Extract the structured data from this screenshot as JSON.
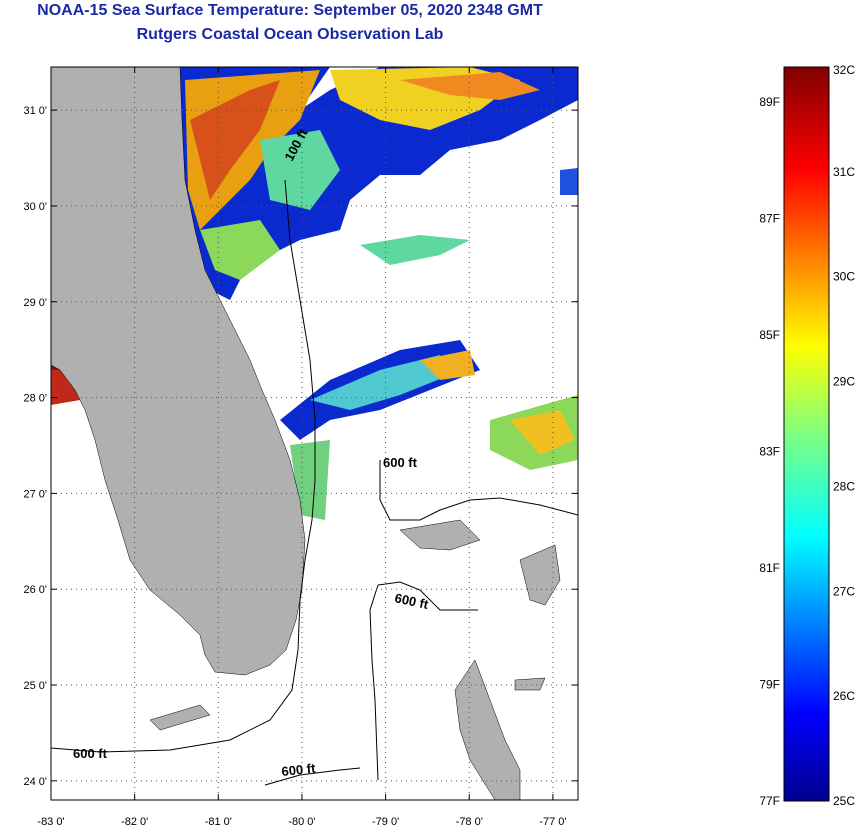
{
  "title": "NOAA-15 Sea Surface Temperature:  September 05, 2020 2348 GMT",
  "subtitle": "Rutgers Coastal Ocean Observation Lab",
  "map": {
    "lat_labels": [
      "31 0'",
      "30 0'",
      "29 0'",
      "28 0'",
      "27 0'",
      "26 0'",
      "25 0'",
      "24 0'"
    ],
    "lat_values": [
      31,
      30,
      29,
      28,
      27,
      26,
      25,
      24
    ],
    "lon_labels": [
      "-83 0'",
      "-82 0'",
      "-81 0'",
      "-80 0'",
      "-79 0'",
      "-78 0'",
      "-77 0'"
    ],
    "lon_values": [
      -83,
      -82,
      -81,
      -80,
      -79,
      -78,
      -77
    ],
    "extent": {
      "lon_min": -83.0,
      "lon_max": -76.7,
      "lat_min": 23.8,
      "lat_max": 31.45
    },
    "isobath_labels": [
      "100 ft",
      "600 ft",
      "600 ft",
      "600 ft",
      "600 ft"
    ],
    "land_color": "#b0b0b0",
    "no_data_color": "#ffffff",
    "isobath_color": "#000000"
  },
  "colorbar": {
    "celsius_labels": [
      "32C",
      "31C",
      "30C",
      "29C",
      "28C",
      "27C",
      "26C",
      "25C"
    ],
    "celsius_values": [
      32,
      31,
      30,
      29,
      28,
      27,
      26,
      25
    ],
    "fahrenheit_labels": [
      "89F",
      "87F",
      "85F",
      "83F",
      "81F",
      "79F",
      "77F"
    ],
    "fahrenheit_values": [
      89,
      87,
      85,
      83,
      81,
      79,
      77
    ],
    "range_c": [
      25,
      32
    ],
    "colormap": "jet"
  }
}
